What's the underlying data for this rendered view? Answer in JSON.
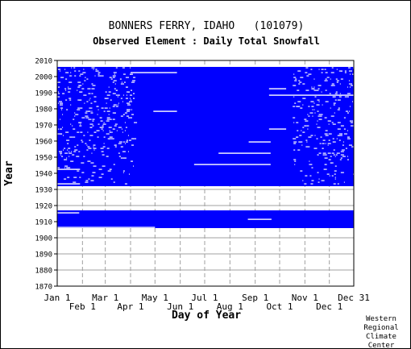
{
  "chart_data": {
    "type": "heatmap",
    "title": "BONNERS FERRY, IDAHO   (101079)",
    "subtitle": "Observed Element : Daily Total Snowfall",
    "xlabel": "Day of Year",
    "ylabel": "Year",
    "x_range": [
      1,
      365
    ],
    "ylim": [
      1870,
      2010
    ],
    "y_ticks": [
      1870,
      1880,
      1890,
      1900,
      1910,
      1920,
      1930,
      1940,
      1950,
      1960,
      1970,
      1980,
      1990,
      2000,
      2010
    ],
    "x_ticks_top_row": [
      {
        "label": "Jan 1",
        "day": 1
      },
      {
        "label": "Mar 1",
        "day": 60
      },
      {
        "label": "May 1",
        "day": 121
      },
      {
        "label": "Jul 1",
        "day": 182
      },
      {
        "label": "Sep 1",
        "day": 244
      },
      {
        "label": "Nov 1",
        "day": 305
      },
      {
        "label": "Dec 31",
        "day": 365
      }
    ],
    "x_ticks_bottom_row": [
      {
        "label": "Feb 1",
        "day": 32
      },
      {
        "label": "Apr 1",
        "day": 91
      },
      {
        "label": "Jun 1",
        "day": 152
      },
      {
        "label": "Aug 1",
        "day": 213
      },
      {
        "label": "Oct 1",
        "day": 274
      },
      {
        "label": "Dec 1",
        "day": 335
      }
    ],
    "grid": true,
    "data_color": "#0000ff",
    "missing_color": "#ffffff",
    "data_blocks": [
      {
        "year_start": 1906,
        "year_end": 1916,
        "day_start": 1,
        "day_end": 365
      },
      {
        "year_start": 1932,
        "year_end": 2005,
        "day_start": 1,
        "day_end": 365
      }
    ],
    "missing_segments": [
      {
        "year": 1906,
        "day_start": 1,
        "day_end": 121
      },
      {
        "year": 1915,
        "day_start": 1,
        "day_end": 28
      },
      {
        "year": 1911,
        "day_start": 235,
        "day_end": 264
      },
      {
        "year": 1933,
        "day_start": 1,
        "day_end": 29
      },
      {
        "year": 1942,
        "day_start": 1,
        "day_end": 29
      },
      {
        "year": 1945,
        "day_start": 169,
        "day_end": 263
      },
      {
        "year": 1952,
        "day_start": 199,
        "day_end": 263
      },
      {
        "year": 1959,
        "day_start": 236,
        "day_end": 263
      },
      {
        "year": 1967,
        "day_start": 261,
        "day_end": 282
      },
      {
        "year": 1978,
        "day_start": 119,
        "day_end": 148
      },
      {
        "year": 1988,
        "day_start": 261,
        "day_end": 365
      },
      {
        "year": 1992,
        "day_start": 261,
        "day_end": 282
      },
      {
        "year": 2002,
        "day_start": 91,
        "day_end": 148
      }
    ],
    "credit": [
      "Western",
      "Regional",
      "Climate",
      "Center"
    ]
  }
}
